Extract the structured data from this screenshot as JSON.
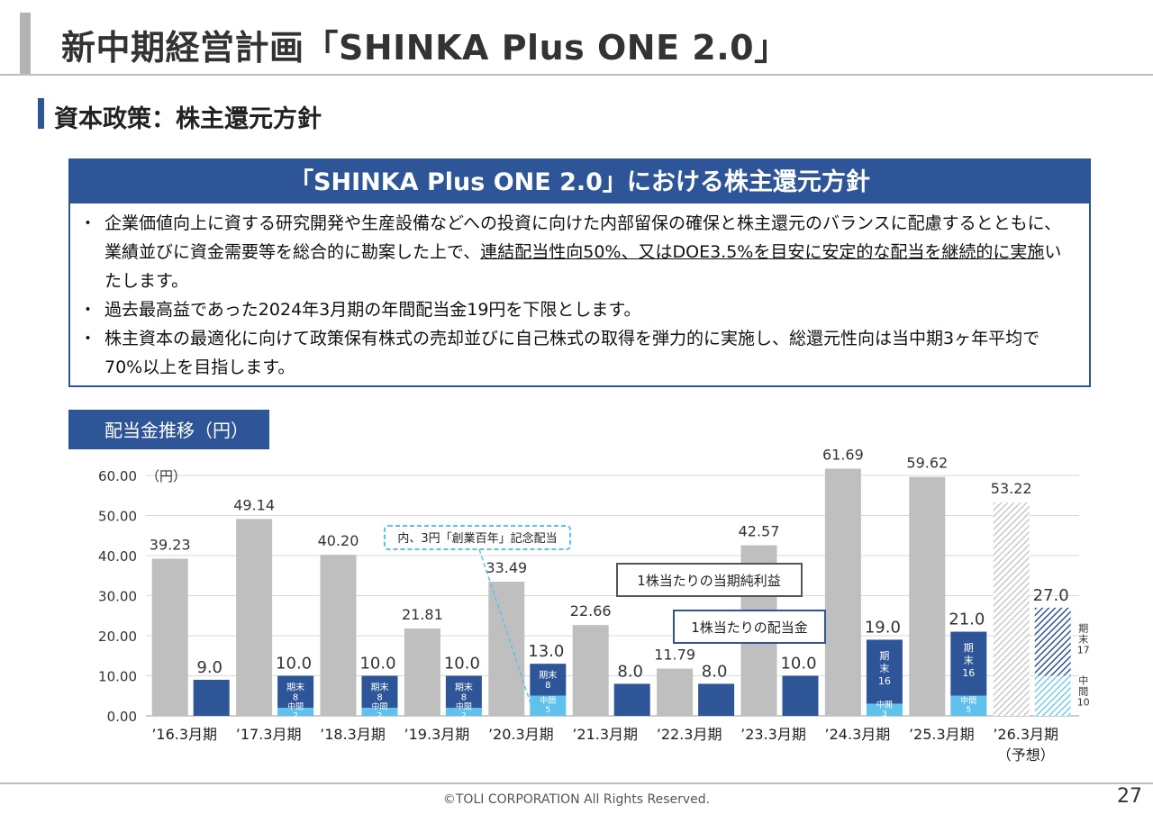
{
  "header": {
    "title": "新中期経営計画「SHINKA Plus ONE 2.0」"
  },
  "section": {
    "title": "資本政策：株主還元方針"
  },
  "policy": {
    "heading": "「SHINKA Plus ONE 2.0」における株主還元方針",
    "bullet1_a": "企業価値向上に資する研究開発や生産設備などへの投資に向けた内部留保の確保と株主還元のバランスに配慮するとともに、業績並びに資金需要等を総合的に勘案した上で、",
    "bullet1_b": "連結配当性向50%、又はDOE3.5%を目安に安定的な配当を継続的に実施",
    "bullet1_c": "いたします。",
    "bullet2": "過去最高益であった2024年3月期の年間配当金19円を下限とします。",
    "bullet3": "株主資本の最適化に向けて政策保有株式の売却並びに自己株式の取得を弾力的に実施し、総還元性向は当中期3ヶ年平均で70%以上を目指します。"
  },
  "chart_tab": "配当金推移（円）",
  "chart_data": {
    "type": "bar",
    "unit": "（円）",
    "ylim": [
      0,
      60
    ],
    "yticks": [
      "0.00",
      "10.00",
      "20.00",
      "30.00",
      "40.00",
      "50.00",
      "60.00"
    ],
    "categories": [
      "’16.3月期",
      "’17.3月期",
      "’18.3月期",
      "’19.3月期",
      "’20.3月期",
      "’21.3月期",
      "’22.3月期",
      "’23.3月期",
      "’24.3月期",
      "’25.3月期",
      "’26.3月期"
    ],
    "forecast_note": "（予想）",
    "series": [
      {
        "name": "1株当たりの当期純利益",
        "values": [
          39.23,
          49.14,
          40.2,
          21.81,
          33.49,
          22.66,
          11.79,
          42.57,
          61.69,
          59.62,
          53.22
        ],
        "labels": [
          "39.23",
          "49.14",
          "40.20",
          "21.81",
          "33.49",
          "22.66",
          "11.79",
          "42.57",
          "61.69",
          "59.62",
          "53.22"
        ]
      },
      {
        "name": "1株当たりの配当金",
        "values": [
          9.0,
          10.0,
          10.0,
          10.0,
          13.0,
          8.0,
          8.0,
          10.0,
          19.0,
          21.0,
          27.0
        ],
        "labels": [
          "9.0",
          "10.0",
          "10.0",
          "10.0",
          "13.0",
          "8.0",
          "8.0",
          "10.0",
          "19.0",
          "21.0",
          "27.0"
        ]
      }
    ],
    "dividend_split": [
      null,
      {
        "interim": 2,
        "year_end": 8
      },
      {
        "interim": 2,
        "year_end": 8
      },
      {
        "interim": 2,
        "year_end": 8
      },
      {
        "interim": 5,
        "year_end": 8
      },
      null,
      null,
      null,
      {
        "interim": 3,
        "year_end": 16
      },
      {
        "interim": 5,
        "year_end": 16
      },
      {
        "interim": 10,
        "year_end": 17
      }
    ],
    "split_labels": {
      "interim": "中間",
      "year_end": "期末"
    },
    "forecast_split_labels": {
      "interim": "中\n間\n10",
      "year_end": "期\n末\n17"
    },
    "callouts": {
      "eps": "1株当たりの当期純利益",
      "dps": "1株当たりの配当金",
      "commemorative": "内、3円「創業百年」記念配当"
    },
    "colors": {
      "eps": "#bfbfbf",
      "dps": "#2e5597",
      "interim": "#5fc1ec",
      "callout_dash": "#5fc1ec"
    }
  },
  "footer": {
    "copyright": "©TOLI CORPORATION All Rights Reserved.",
    "page": "27"
  }
}
